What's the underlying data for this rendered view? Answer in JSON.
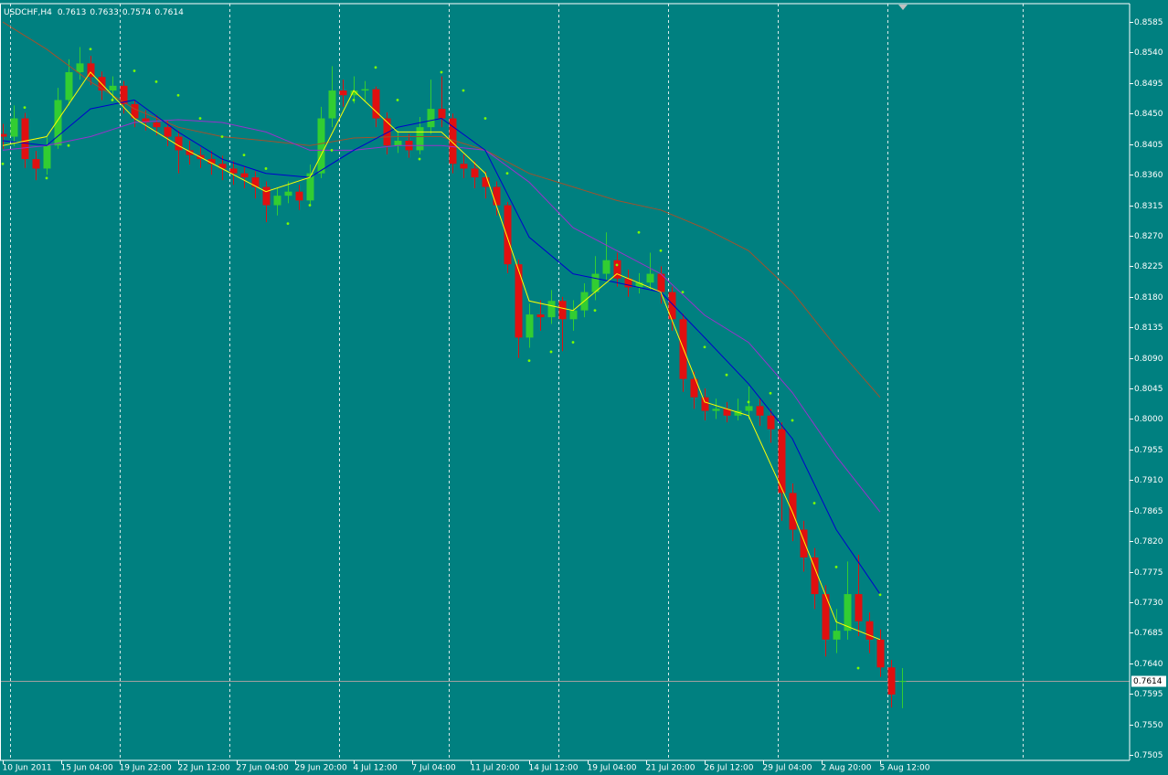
{
  "chart_data": {
    "type": "candlestick",
    "title": "USDCHF,H4",
    "title_values": [
      0.7613,
      0.7633,
      0.7574,
      0.7614
    ],
    "up_color": "#32cd32",
    "down_color": "#e01010",
    "x": [
      0,
      3,
      6,
      9,
      12,
      15,
      18,
      21,
      24,
      27,
      30,
      33,
      36,
      39,
      42,
      45,
      48,
      51,
      54,
      57,
      60,
      63,
      66,
      69,
      72,
      75,
      78,
      81,
      84,
      87,
      90,
      93,
      96,
      99,
      102,
      105,
      108,
      111,
      114,
      117,
      120,
      123,
      126,
      129,
      132,
      135,
      138,
      141,
      144,
      147,
      150,
      153,
      156,
      159,
      162,
      165,
      168,
      171,
      174,
      177,
      180,
      183,
      186,
      189,
      192,
      195,
      198,
      201,
      204,
      207,
      210,
      213,
      216,
      219,
      222,
      225,
      228,
      231,
      234,
      237,
      240,
      243,
      246
    ],
    "open": [
      0.842,
      0.8416,
      0.8443,
      0.8383,
      0.8369,
      0.8403,
      0.847,
      0.8511,
      0.8524,
      0.8504,
      0.8484,
      0.8491,
      0.8464,
      0.8443,
      0.8437,
      0.843,
      0.8416,
      0.8396,
      0.8389,
      0.8383,
      0.8376,
      0.8369,
      0.8362,
      0.8356,
      0.8342,
      0.8315,
      0.8329,
      0.8335,
      0.8322,
      0.8362,
      0.8443,
      0.8484,
      0.8477,
      0.8484,
      0.8486,
      0.8443,
      0.8403,
      0.841,
      0.8396,
      0.843,
      0.8457,
      0.8443,
      0.8376,
      0.8369,
      0.8356,
      0.8342,
      0.8315,
      0.8228,
      0.812,
      0.8154,
      0.815,
      0.8174,
      0.8147,
      0.816,
      0.8187,
      0.8214,
      0.8234,
      0.8207,
      0.8194,
      0.8201,
      0.8214,
      0.8187,
      0.8147,
      0.8059,
      0.8032,
      0.8012,
      0.8015,
      0.8005,
      0.8012,
      0.8019,
      0.8005,
      0.7985,
      0.7891,
      0.7837,
      0.7796,
      0.7742,
      0.7675,
      0.7688,
      0.7742,
      0.7702,
      0.7675,
      0.7634,
      0.7613
    ],
    "high": [
      0.8435,
      0.8462,
      0.8451,
      0.8395,
      0.8415,
      0.8488,
      0.853,
      0.8548,
      0.8535,
      0.8512,
      0.8505,
      0.8498,
      0.847,
      0.8455,
      0.8448,
      0.844,
      0.8425,
      0.841,
      0.84,
      0.8395,
      0.8388,
      0.838,
      0.8372,
      0.8365,
      0.835,
      0.834,
      0.835,
      0.8345,
      0.8375,
      0.846,
      0.852,
      0.85,
      0.8505,
      0.8498,
      0.849,
      0.8452,
      0.8425,
      0.842,
      0.8445,
      0.85,
      0.8505,
      0.845,
      0.839,
      0.838,
      0.8365,
      0.835,
      0.832,
      0.8235,
      0.817,
      0.8175,
      0.819,
      0.818,
      0.8175,
      0.82,
      0.824,
      0.8275,
      0.8245,
      0.822,
      0.8215,
      0.8245,
      0.8225,
      0.8195,
      0.8155,
      0.807,
      0.8045,
      0.803,
      0.8025,
      0.803,
      0.8048,
      0.803,
      0.8015,
      0.7995,
      0.7905,
      0.785,
      0.781,
      0.7755,
      0.772,
      0.779,
      0.78,
      0.7715,
      0.769,
      0.7645,
      0.7633
    ],
    "low": [
      0.8398,
      0.8402,
      0.837,
      0.8352,
      0.836,
      0.8398,
      0.8462,
      0.85,
      0.8492,
      0.847,
      0.8472,
      0.845,
      0.843,
      0.8425,
      0.8418,
      0.8402,
      0.8362,
      0.8375,
      0.837,
      0.836,
      0.8352,
      0.8345,
      0.834,
      0.8325,
      0.829,
      0.83,
      0.8318,
      0.8308,
      0.8315,
      0.8355,
      0.843,
      0.846,
      0.8465,
      0.8468,
      0.843,
      0.839,
      0.8392,
      0.8385,
      0.839,
      0.842,
      0.843,
      0.8362,
      0.8355,
      0.834,
      0.8325,
      0.83,
      0.8215,
      0.809,
      0.8105,
      0.813,
      0.814,
      0.81,
      0.813,
      0.815,
      0.8175,
      0.8205,
      0.8195,
      0.818,
      0.8185,
      0.819,
      0.817,
      0.813,
      0.804,
      0.8015,
      0.7998,
      0.8,
      0.7995,
      0.7998,
      0.8,
      0.799,
      0.7965,
      0.785,
      0.782,
      0.7775,
      0.772,
      0.765,
      0.7655,
      0.7675,
      0.768,
      0.7655,
      0.762,
      0.7575,
      0.7574
    ],
    "close": [
      0.8416,
      0.8443,
      0.8383,
      0.8369,
      0.8403,
      0.847,
      0.8511,
      0.8524,
      0.8504,
      0.8484,
      0.8491,
      0.8464,
      0.8443,
      0.8437,
      0.843,
      0.8416,
      0.8396,
      0.8389,
      0.8383,
      0.8376,
      0.8369,
      0.8362,
      0.8356,
      0.8342,
      0.8315,
      0.8329,
      0.8335,
      0.8322,
      0.8362,
      0.8443,
      0.8484,
      0.8477,
      0.8484,
      0.8486,
      0.8443,
      0.8403,
      0.841,
      0.8396,
      0.843,
      0.8457,
      0.8443,
      0.8376,
      0.8369,
      0.8356,
      0.8342,
      0.8315,
      0.8228,
      0.812,
      0.8154,
      0.815,
      0.8174,
      0.8147,
      0.816,
      0.8187,
      0.8214,
      0.8234,
      0.8207,
      0.8194,
      0.8201,
      0.8214,
      0.8187,
      0.8147,
      0.8059,
      0.8032,
      0.8012,
      0.8015,
      0.8005,
      0.8012,
      0.8019,
      0.8005,
      0.7985,
      0.7891,
      0.7837,
      0.7796,
      0.7742,
      0.7675,
      0.7688,
      0.7742,
      0.7702,
      0.7675,
      0.7634,
      0.7594,
      0.7614
    ],
    "line_x": [
      0,
      12,
      24,
      36,
      48,
      60,
      72,
      84,
      96,
      108,
      120,
      132,
      144,
      156,
      168,
      180,
      192,
      204,
      216,
      228,
      240
    ],
    "lines": [
      {
        "color": "#a0522d",
        "values": [
          0.8585,
          0.8545,
          0.8497,
          0.8457,
          0.843,
          0.8416,
          0.841,
          0.8403,
          0.8414,
          0.8416,
          0.8416,
          0.8396,
          0.8362,
          0.8342,
          0.8322,
          0.8308,
          0.8281,
          0.8248,
          0.8187,
          0.8106,
          0.8032
        ]
      },
      {
        "color": "#9932cc",
        "values": [
          0.8396,
          0.8403,
          0.8416,
          0.8437,
          0.8441,
          0.8437,
          0.8423,
          0.8396,
          0.8396,
          0.8403,
          0.8403,
          0.8396,
          0.8349,
          0.8282,
          0.8248,
          0.8214,
          0.8153,
          0.8113,
          0.8039,
          0.7945,
          0.7863
        ]
      },
      {
        "color": "#0000cd",
        "values": [
          0.841,
          0.8403,
          0.8457,
          0.847,
          0.8423,
          0.8383,
          0.8362,
          0.8356,
          0.8396,
          0.843,
          0.8443,
          0.8396,
          0.8268,
          0.8214,
          0.8201,
          0.8187,
          0.812,
          0.8052,
          0.7971,
          0.7837,
          0.7742
        ]
      },
      {
        "color": "#ffff00",
        "values": [
          0.8403,
          0.8416,
          0.8511,
          0.8443,
          0.8403,
          0.8369,
          0.8335,
          0.8356,
          0.8484,
          0.8423,
          0.8423,
          0.8362,
          0.8174,
          0.816,
          0.8214,
          0.8187,
          0.8025,
          0.8005,
          0.7863,
          0.7701,
          0.7675
        ]
      }
    ],
    "sar": {
      "color": "#7cfc00",
      "x": [
        0,
        6,
        12,
        18,
        24,
        30,
        36,
        42,
        48,
        54,
        60,
        66,
        72,
        78,
        84,
        90,
        96,
        102,
        108,
        114,
        120,
        126,
        132,
        138,
        144,
        150,
        156,
        162,
        168,
        174,
        180,
        186,
        192,
        198,
        204,
        210,
        216,
        222,
        228,
        234,
        240
      ],
      "values": [
        0.8376,
        0.8459,
        0.8355,
        0.8403,
        0.8545,
        0.847,
        0.8513,
        0.8497,
        0.8477,
        0.8443,
        0.8416,
        0.8389,
        0.8369,
        0.8288,
        0.8315,
        0.8396,
        0.847,
        0.8518,
        0.847,
        0.8383,
        0.8511,
        0.8484,
        0.8443,
        0.8362,
        0.8086,
        0.8099,
        0.8113,
        0.816,
        0.8227,
        0.8275,
        0.8248,
        0.8187,
        0.8106,
        0.8065,
        0.8025,
        0.8038,
        0.7998,
        0.7876,
        0.7782,
        0.7633,
        0.7741
      ]
    },
    "last_price": 0.7614,
    "last_price_color": "#a0a0a0",
    "xlim": [
      -0.75,
      308.25
    ],
    "ylim": [
      0.7497,
      0.8612
    ],
    "xgrid": [
      2,
      32,
      62,
      92,
      122,
      152,
      182,
      212,
      242,
      279
    ],
    "xticks": [
      {
        "value": 0,
        "label": "10 Jun 2011"
      },
      {
        "value": 16,
        "label": "15 Jun 04:00"
      },
      {
        "value": 32,
        "label": "19 Jun 22:00"
      },
      {
        "value": 48,
        "label": "22 Jun 12:00"
      },
      {
        "value": 64,
        "label": "27 Jun 04:00"
      },
      {
        "value": 80,
        "label": "29 Jun 20:00"
      },
      {
        "value": 96,
        "label": "4 Jul 12:00"
      },
      {
        "value": 112,
        "label": "7 Jul 04:00"
      },
      {
        "value": 128,
        "label": "11 Jul 20:00"
      },
      {
        "value": 144,
        "label": "14 Jul 12:00"
      },
      {
        "value": 160,
        "label": "19 Jul 04:00"
      },
      {
        "value": 176,
        "label": "21 Jul 20:00"
      },
      {
        "value": 192,
        "label": "26 Jul 12:00"
      },
      {
        "value": 208,
        "label": "29 Jul 04:00"
      },
      {
        "value": 224,
        "label": "2 Aug 20:00"
      },
      {
        "value": 240,
        "label": "5 Aug 12:00"
      }
    ],
    "yticks": [
      0.8585,
      {
        "value": 0.854,
        "label": "0.8540"
      },
      0.8495,
      {
        "value": 0.845,
        "label": "0.8450"
      },
      0.8405,
      {
        "value": 0.836,
        "label": "0.8360"
      },
      0.8315,
      {
        "value": 0.827,
        "label": "0.8270"
      },
      0.8225,
      {
        "value": 0.818,
        "label": "0.8180"
      },
      0.8135,
      {
        "value": 0.809,
        "label": "0.8090"
      },
      0.8045,
      {
        "value": 0.8,
        "label": "0.8000"
      },
      0.7955,
      {
        "value": 0.791,
        "label": "0.7910"
      },
      0.7865,
      {
        "value": 0.782,
        "label": "0.7820"
      },
      0.7775,
      {
        "value": 0.773,
        "label": "0.7730"
      },
      0.7685,
      {
        "value": 0.764,
        "label": "0.7640"
      },
      0.7595,
      {
        "value": 0.755,
        "label": "0.7550"
      },
      0.7505
    ]
  }
}
